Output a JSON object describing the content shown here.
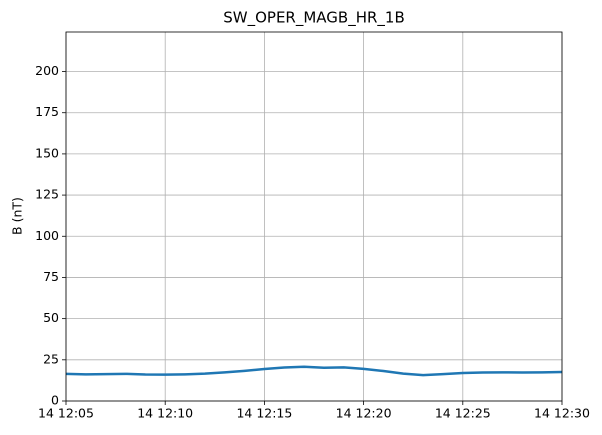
{
  "chart_data": {
    "type": "line",
    "title": "SW_OPER_MAGB_HR_1B",
    "y_label": "B (nT)",
    "x": [
      "14 12:05",
      "14 12:06",
      "14 12:07",
      "14 12:08",
      "14 12:09",
      "14 12:10",
      "14 12:11",
      "14 12:12",
      "14 12:13",
      "14 12:14",
      "14 12:15",
      "14 12:16",
      "14 12:17",
      "14 12:18",
      "14 12:19",
      "14 12:20",
      "14 12:21",
      "14 12:22",
      "14 12:23",
      "14 12:24",
      "14 12:25",
      "14 12:26",
      "14 12:27",
      "14 12:28",
      "14 12:29",
      "14 12:30"
    ],
    "series": [
      {
        "color": "#1f77b4",
        "values": [
          16.5,
          16.2,
          16.3,
          16.5,
          16.1,
          16.0,
          16.2,
          16.6,
          17.4,
          18.3,
          19.4,
          20.3,
          20.8,
          20.2,
          20.4,
          19.5,
          18.2,
          16.6,
          15.7,
          16.3,
          17.0,
          17.3,
          17.4,
          17.3,
          17.4,
          17.6
        ]
      }
    ],
    "xlim": [
      "14 12:05",
      "14 12:30"
    ],
    "xticks": [
      "14 12:05",
      "14 12:10",
      "14 12:15",
      "14 12:20",
      "14 12:25",
      "14 12:30"
    ],
    "ylim": [
      0,
      224
    ],
    "yticks": [
      0,
      25,
      50,
      75,
      100,
      125,
      150,
      175,
      200
    ],
    "grid": true
  }
}
